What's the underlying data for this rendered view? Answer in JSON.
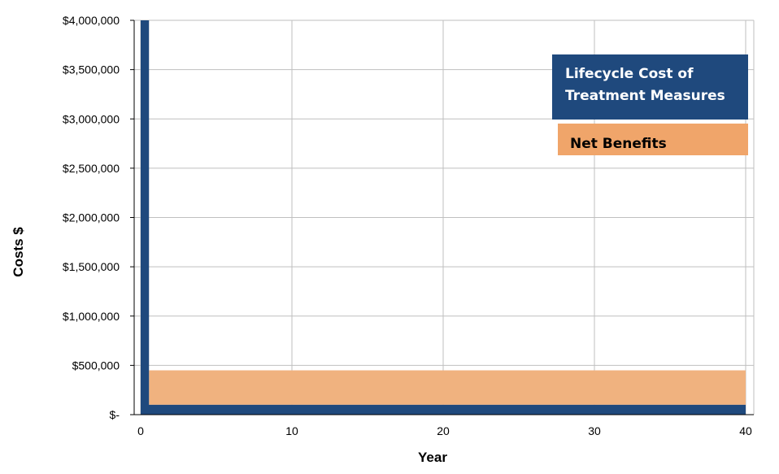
{
  "chart_data": {
    "type": "area",
    "x_range": [
      0,
      40
    ],
    "y_range": [
      0,
      4000000
    ],
    "x_ticks": [
      0,
      10,
      20,
      30,
      40
    ],
    "y_ticks": [
      0,
      500000,
      1000000,
      1500000,
      2000000,
      2500000,
      3000000,
      3500000,
      4000000
    ],
    "y_tick_labels": [
      "$-",
      "$500,000",
      "$1,000,000",
      "$1,500,000",
      "$2,000,000",
      "$2,500,000",
      "$3,000,000",
      "$3,500,000",
      "$4,000,000"
    ],
    "x_tick_labels": [
      "0",
      "10",
      "20",
      "30",
      "40"
    ],
    "xlabel": "Year",
    "ylabel": "Costs $",
    "grid": true,
    "legend_position": "top-right",
    "series": [
      {
        "name": "Net Benefits",
        "color": "#F0B27F",
        "points": [
          [
            0.55,
            450000
          ],
          [
            40,
            450000
          ]
        ],
        "base": 100000
      },
      {
        "name": "Lifecycle Cost of Treatment Measures",
        "color": "#1F497D",
        "points": [
          [
            0,
            4000000
          ],
          [
            0.55,
            4000000
          ],
          [
            0.55,
            100000
          ],
          [
            40,
            100000
          ]
        ],
        "base": 0
      }
    ],
    "legend": [
      {
        "label": "Lifecycle Cost of Treatment Measures",
        "lines": [
          "Lifecycle Cost of",
          "Treatment Measures"
        ],
        "color": "#1F497D",
        "text_color": "#FFFFFF"
      },
      {
        "label": "Net Benefits",
        "lines": [
          "Net Benefits"
        ],
        "color": "#F0A56A",
        "text_color": "#000000"
      }
    ]
  }
}
